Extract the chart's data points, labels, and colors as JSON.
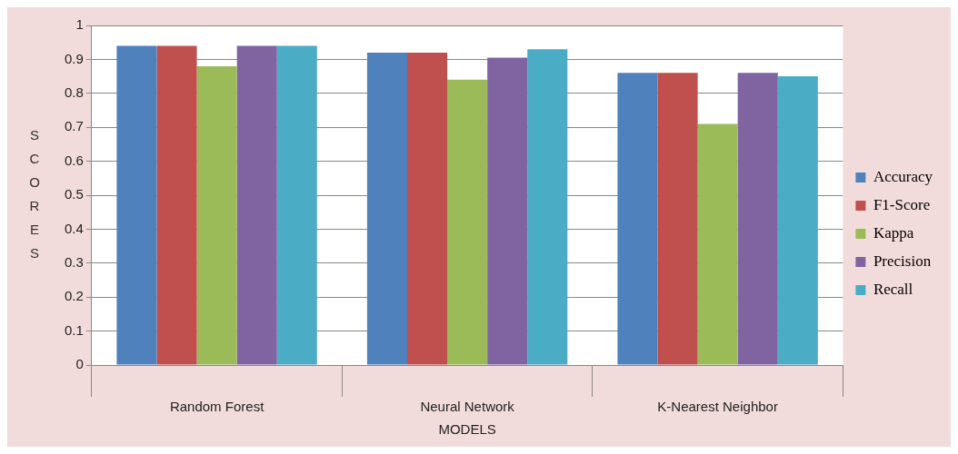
{
  "chart_data": {
    "type": "bar",
    "xlabel": "MODELS",
    "ylabel": "SCORES",
    "categories": [
      "Random Forest",
      "Neural Network",
      "K-Nearest Neighbor"
    ],
    "series": [
      {
        "name": "Accuracy",
        "color": "#4f81bd",
        "values": [
          0.94,
          0.92,
          0.86
        ]
      },
      {
        "name": "F1-Score",
        "color": "#c0504d",
        "values": [
          0.94,
          0.92,
          0.86
        ]
      },
      {
        "name": "Kappa",
        "color": "#9bbb59",
        "values": [
          0.88,
          0.84,
          0.71
        ]
      },
      {
        "name": "Precision",
        "color": "#8064a2",
        "values": [
          0.94,
          0.905,
          0.86
        ]
      },
      {
        "name": "Recall",
        "color": "#4bacc6",
        "values": [
          0.94,
          0.93,
          0.85
        ]
      }
    ],
    "ylim": [
      0,
      1
    ],
    "yticks": [
      0,
      0.1,
      0.2,
      0.3,
      0.4,
      0.5,
      0.6,
      0.7,
      0.8,
      0.9,
      1
    ],
    "grid": "y",
    "legend": "right"
  }
}
